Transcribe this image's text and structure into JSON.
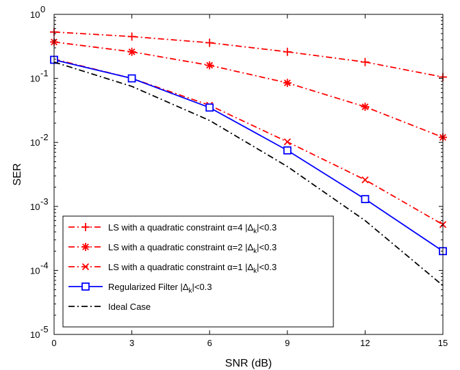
{
  "chart_data": {
    "type": "line",
    "title": "",
    "xlabel": "SNR (dB)",
    "ylabel": "SER",
    "x_scale": "linear",
    "y_scale": "log",
    "xlim": [
      0,
      15
    ],
    "ylim": [
      1e-05,
      1
    ],
    "x_ticks": [
      0,
      3,
      6,
      9,
      12,
      15
    ],
    "x_tick_labels": [
      "0",
      "3",
      "6",
      "9",
      "12",
      "15"
    ],
    "y_ticks": [
      1e-05,
      0.0001,
      0.001,
      0.01,
      0.1,
      1
    ],
    "y_tick_labels": [
      {
        "base": "10",
        "exp": "-5"
      },
      {
        "base": "10",
        "exp": "-4"
      },
      {
        "base": "10",
        "exp": "-3"
      },
      {
        "base": "10",
        "exp": "-2"
      },
      {
        "base": "10",
        "exp": "-1"
      },
      {
        "base": "10",
        "exp": "0"
      }
    ],
    "grid": false,
    "legend_position": "bottom-left",
    "x": [
      0,
      3,
      6,
      9,
      12,
      15
    ],
    "series": [
      {
        "name": "LS with a quadratic constraint α=4 |Δk|<0.3",
        "legend": {
          "pre": "LS with a quadratic constraint α=4 |Δ",
          "sub": "k",
          "post": "|<0.3"
        },
        "values": [
          0.53,
          0.45,
          0.36,
          0.26,
          0.18,
          0.105
        ],
        "color": "#ff0000",
        "line_style": "dashdot",
        "marker": "plus"
      },
      {
        "name": "LS with a quadratic constraint α=2 |Δk|<0.3",
        "legend": {
          "pre": "LS with a quadratic constraint α=2 |Δ",
          "sub": "k",
          "post": "|<0.3"
        },
        "values": [
          0.37,
          0.26,
          0.16,
          0.085,
          0.036,
          0.012
        ],
        "color": "#ff0000",
        "line_style": "dashdot",
        "marker": "asterisk"
      },
      {
        "name": "LS with a quadratic constraint α=1 |Δk|<0.3",
        "legend": {
          "pre": "LS with a quadratic constraint α=1 |Δ",
          "sub": "k",
          "post": "|<0.3"
        },
        "values": [
          0.2,
          0.1,
          0.038,
          0.0102,
          0.0026,
          0.00052
        ],
        "color": "#ff0000",
        "line_style": "dashdot",
        "marker": "x"
      },
      {
        "name": "Regularized Filter |Δk|<0.3",
        "legend": {
          "pre": "Regularized Filter |Δ",
          "sub": "k",
          "post": "|<0.3"
        },
        "values": [
          0.195,
          0.1,
          0.035,
          0.0075,
          0.0013,
          0.0002
        ],
        "color": "#0000ff",
        "line_style": "solid",
        "marker": "square"
      },
      {
        "name": "Ideal Case",
        "legend": {
          "pre": "Ideal Case",
          "sub": "",
          "post": ""
        },
        "values": [
          0.18,
          0.075,
          0.022,
          0.0042,
          0.0006,
          5.8e-05
        ],
        "color": "#000000",
        "line_style": "dashdot",
        "marker": "none"
      }
    ]
  }
}
